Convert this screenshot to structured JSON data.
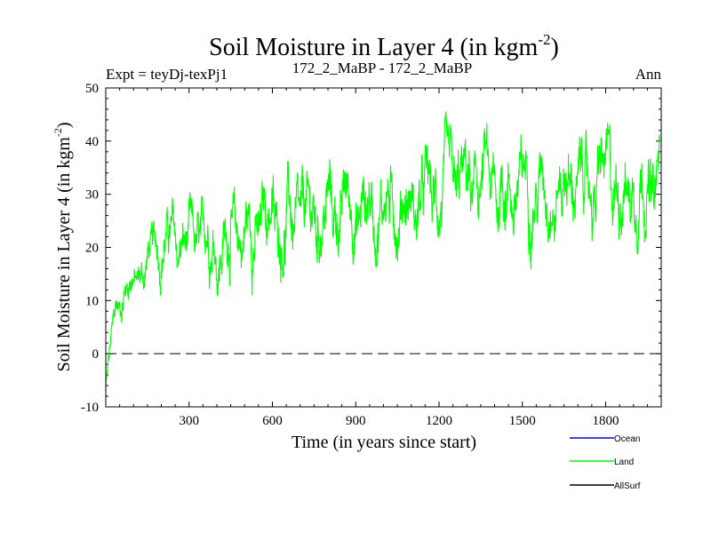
{
  "chart_data": {
    "type": "line",
    "title_main": "Soil Moisture in Layer 4 (in kgm",
    "title_sup": "-2",
    "title_close": ")",
    "subtitle_left": "Expt = teyDj-texPj1",
    "subtitle_center": "172_2_MaBP - 172_2_MaBP",
    "subtitle_right": "Ann",
    "xlabel": "Time (in years since start)",
    "ylabel_main": "Soil Moisture in Layer 4 (in kgm",
    "ylabel_sup": "-2",
    "ylabel_close": ")",
    "xlim": [
      0,
      2000
    ],
    "ylim": [
      -10,
      50
    ],
    "x_ticks": [
      300,
      600,
      900,
      1200,
      1500,
      1800
    ],
    "y_ticks": [
      -10,
      0,
      10,
      20,
      30,
      40,
      50
    ],
    "reference_line": {
      "y": 0,
      "style": "dashed"
    },
    "legend": [
      {
        "name": "Ocean",
        "color": "#0000ff"
      },
      {
        "name": "Land",
        "color": "#00ff00"
      },
      {
        "name": "AllSurf",
        "color": "#000000"
      }
    ],
    "series": [
      {
        "name": "Land",
        "color": "#00ff00",
        "x": [
          0,
          10,
          20,
          30,
          40,
          60,
          80,
          100,
          120,
          140,
          160,
          180,
          200,
          220,
          240,
          260,
          280,
          300,
          330,
          360,
          390,
          420,
          450,
          480,
          510,
          540,
          570,
          600,
          630,
          660,
          690,
          720,
          750,
          780,
          810,
          840,
          870,
          900,
          930,
          960,
          990,
          1020,
          1050,
          1080,
          1110,
          1140,
          1170,
          1200,
          1230,
          1260,
          1290,
          1320,
          1350,
          1380,
          1410,
          1440,
          1470,
          1500,
          1530,
          1560,
          1590,
          1620,
          1650,
          1680,
          1710,
          1740,
          1770,
          1800,
          1830,
          1860,
          1890,
          1920,
          1950,
          1980,
          1995
        ],
        "values": [
          -7,
          -3,
          2,
          6,
          9,
          11,
          13,
          14,
          15,
          16,
          18,
          20,
          21,
          22,
          21,
          20,
          21,
          19,
          20,
          21,
          22,
          21,
          22,
          23,
          22,
          24,
          25,
          26,
          24,
          25,
          24,
          23,
          25,
          26,
          27,
          28,
          27,
          28,
          27,
          28,
          29,
          28,
          29,
          28,
          29,
          28,
          29,
          30,
          29,
          30,
          31,
          30,
          32,
          31,
          30,
          31,
          32,
          31,
          32,
          33,
          32,
          31,
          32,
          33,
          32,
          31,
          32,
          33,
          32,
          31,
          32,
          33,
          32,
          30,
          35
        ]
      },
      {
        "name": "Ocean",
        "color": "#0000ff",
        "x": [],
        "values": []
      },
      {
        "name": "AllSurf",
        "color": "#000000",
        "x": [],
        "values": []
      }
    ]
  }
}
